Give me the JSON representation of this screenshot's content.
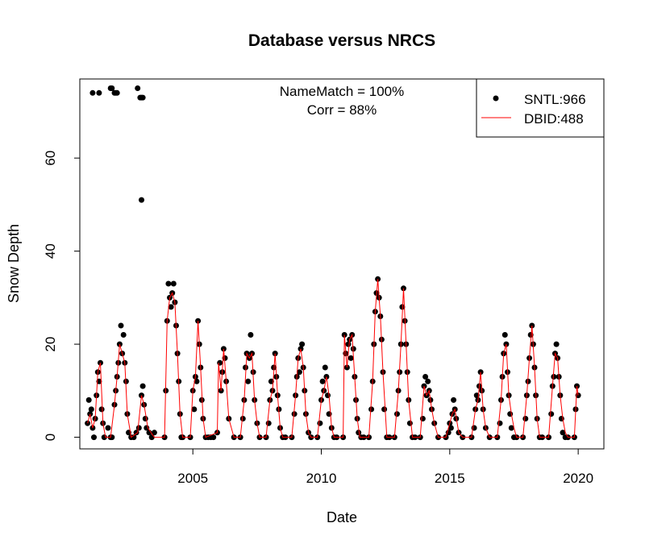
{
  "chart_data": {
    "type": "scatter",
    "title": "Database versus NRCS",
    "xlabel": "Date",
    "ylabel": "Snow Depth",
    "xlim": [
      2000.6,
      2021.0
    ],
    "ylim": [
      -2.5,
      77
    ],
    "x_ticks": [
      2005,
      2010,
      2015,
      2020
    ],
    "y_ticks": [
      0,
      20,
      40,
      60
    ],
    "grid": false,
    "legend_position": "top-right",
    "annotations": [
      "NameMatch = 100%",
      "Corr = 88%"
    ],
    "series": [
      {
        "name": "SNTL:966",
        "mark": "point",
        "color": "#000000",
        "x": [
          2000.9,
          2000.95,
          2001.0,
          2001.05,
          2001.1,
          2001.15,
          2001.2,
          2001.25,
          2001.3,
          2001.35,
          2001.4,
          2001.45,
          2001.5,
          2001.55,
          2001.7,
          2001.8,
          2001.85,
          2001.95,
          2002.0,
          2002.05,
          2002.1,
          2002.15,
          2002.2,
          2002.25,
          2002.3,
          2002.35,
          2002.4,
          2002.45,
          2002.5,
          2002.6,
          2002.7,
          2002.8,
          2002.9,
          2003.0,
          2003.05,
          2003.1,
          2003.15,
          2003.2,
          2003.3,
          2003.4,
          2003.5,
          2003.9,
          2003.95,
          2004.0,
          2004.05,
          2004.1,
          2004.15,
          2004.2,
          2004.25,
          2004.3,
          2004.35,
          2004.4,
          2004.45,
          2004.5,
          2004.55,
          2004.6,
          2004.9,
          2005.0,
          2005.05,
          2005.1,
          2005.15,
          2005.2,
          2005.25,
          2005.3,
          2005.35,
          2005.4,
          2005.5,
          2005.6,
          2005.7,
          2005.8,
          2005.95,
          2006.05,
          2006.1,
          2006.15,
          2006.2,
          2006.25,
          2006.3,
          2006.4,
          2006.6,
          2006.85,
          2006.95,
          2007.0,
          2007.05,
          2007.1,
          2007.15,
          2007.2,
          2007.25,
          2007.3,
          2007.35,
          2007.4,
          2007.5,
          2007.6,
          2007.85,
          2007.95,
          2008.0,
          2008.05,
          2008.1,
          2008.15,
          2008.2,
          2008.25,
          2008.3,
          2008.35,
          2008.4,
          2008.5,
          2008.6,
          2008.85,
          2008.95,
          2009.0,
          2009.05,
          2009.1,
          2009.15,
          2009.2,
          2009.25,
          2009.3,
          2009.35,
          2009.4,
          2009.5,
          2009.6,
          2009.85,
          2009.95,
          2010.0,
          2010.05,
          2010.1,
          2010.15,
          2010.2,
          2010.25,
          2010.3,
          2010.4,
          2010.5,
          2010.6,
          2010.85,
          2010.9,
          2010.95,
          2011.0,
          2011.05,
          2011.1,
          2011.15,
          2011.2,
          2011.25,
          2011.3,
          2011.35,
          2011.4,
          2011.45,
          2011.55,
          2011.65,
          2011.85,
          2011.95,
          2012.0,
          2012.05,
          2012.1,
          2012.15,
          2012.2,
          2012.25,
          2012.3,
          2012.35,
          2012.4,
          2012.45,
          2012.55,
          2012.65,
          2012.85,
          2012.95,
          2013.0,
          2013.05,
          2013.1,
          2013.15,
          2013.2,
          2013.25,
          2013.3,
          2013.35,
          2013.4,
          2013.45,
          2013.55,
          2013.65,
          2013.85,
          2013.95,
          2014.0,
          2014.05,
          2014.1,
          2014.15,
          2014.2,
          2014.25,
          2014.3,
          2014.4,
          2014.55,
          2014.85,
          2014.95,
          2015.0,
          2015.05,
          2015.1,
          2015.15,
          2015.2,
          2015.25,
          2015.35,
          2015.5,
          2015.85,
          2015.95,
          2016.0,
          2016.05,
          2016.1,
          2016.15,
          2016.2,
          2016.25,
          2016.3,
          2016.4,
          2016.55,
          2016.85,
          2016.95,
          2017.0,
          2017.05,
          2017.1,
          2017.15,
          2017.2,
          2017.25,
          2017.3,
          2017.35,
          2017.4,
          2017.5,
          2017.6,
          2017.85,
          2017.95,
          2018.0,
          2018.05,
          2018.1,
          2018.15,
          2018.2,
          2018.25,
          2018.3,
          2018.35,
          2018.4,
          2018.5,
          2018.6,
          2018.85,
          2018.95,
          2019.0,
          2019.05,
          2019.1,
          2019.15,
          2019.2,
          2019.25,
          2019.3,
          2019.35,
          2019.4,
          2019.5,
          2019.6,
          2019.85,
          2019.9,
          2019.95,
          2020.0,
          2001.1,
          2001.35,
          2001.8,
          2001.85,
          2001.95,
          2002.0,
          2002.05,
          2002.85,
          2002.95,
          2003.0,
          2003.05,
          2003.0
        ],
        "y": [
          3,
          8,
          5,
          6,
          2,
          0,
          4,
          9,
          14,
          12,
          16,
          6,
          3,
          0,
          2,
          0,
          0,
          7,
          10,
          13,
          16,
          20,
          24,
          18,
          22,
          16,
          12,
          5,
          1,
          0,
          0,
          1,
          2,
          9,
          11,
          7,
          4,
          2,
          1,
          0,
          1,
          0,
          10,
          25,
          33,
          30,
          28,
          31,
          33,
          29,
          24,
          18,
          12,
          5,
          0,
          0,
          0,
          10,
          6,
          13,
          12,
          25,
          20,
          15,
          8,
          4,
          0,
          0,
          0,
          0,
          1,
          16,
          10,
          14,
          19,
          17,
          12,
          4,
          0,
          0,
          4,
          8,
          15,
          18,
          12,
          17,
          22,
          18,
          14,
          8,
          3,
          0,
          0,
          3,
          8,
          12,
          10,
          15,
          18,
          13,
          9,
          6,
          2,
          0,
          0,
          0,
          5,
          9,
          13,
          17,
          14,
          19,
          20,
          15,
          10,
          5,
          1,
          0,
          0,
          3,
          8,
          12,
          10,
          15,
          13,
          9,
          5,
          2,
          0,
          0,
          0,
          22,
          18,
          15,
          20,
          21,
          17,
          22,
          19,
          13,
          8,
          4,
          1,
          0,
          0,
          0,
          6,
          12,
          20,
          27,
          31,
          34,
          30,
          26,
          21,
          14,
          6,
          0,
          0,
          0,
          5,
          10,
          14,
          20,
          28,
          32,
          25,
          20,
          14,
          8,
          3,
          0,
          0,
          0,
          4,
          11,
          13,
          9,
          12,
          10,
          8,
          6,
          3,
          0,
          0,
          1,
          3,
          2,
          5,
          8,
          6,
          4,
          1,
          0,
          0,
          2,
          6,
          9,
          8,
          11,
          14,
          10,
          6,
          2,
          0,
          0,
          3,
          8,
          13,
          18,
          22,
          20,
          14,
          9,
          5,
          2,
          0,
          0,
          0,
          4,
          9,
          12,
          17,
          22,
          24,
          20,
          15,
          9,
          4,
          0,
          0,
          0,
          5,
          11,
          13,
          18,
          20,
          17,
          13,
          9,
          4,
          1,
          0,
          0,
          0,
          6,
          11,
          9,
          74,
          74,
          75,
          75,
          74,
          74,
          74,
          75,
          73,
          73,
          73,
          51
        ]
      },
      {
        "name": "DBID:488",
        "mark": "line",
        "color": "#ff0000",
        "x": [
          2000.9,
          2001.0,
          2001.1,
          2001.2,
          2001.3,
          2001.4,
          2001.5,
          2001.6,
          2001.8,
          2001.95,
          2002.05,
          2002.15,
          2002.25,
          2002.35,
          2002.45,
          2002.6,
          2002.85,
          2003.0,
          2003.1,
          2003.25,
          2003.5,
          2003.85,
          2003.9,
          2004.0,
          2004.1,
          2004.2,
          2004.3,
          2004.4,
          2004.5,
          2004.6,
          2004.9,
          2005.0,
          2005.1,
          2005.2,
          2005.3,
          2005.4,
          2005.5,
          2005.95,
          2006.0,
          2006.1,
          2006.2,
          2006.3,
          2006.4,
          2006.6,
          2006.85,
          2007.0,
          2007.1,
          2007.2,
          2007.3,
          2007.4,
          2007.5,
          2007.6,
          2007.85,
          2008.0,
          2008.1,
          2008.2,
          2008.3,
          2008.4,
          2008.5,
          2008.6,
          2008.85,
          2009.0,
          2009.1,
          2009.2,
          2009.3,
          2009.4,
          2009.5,
          2009.6,
          2009.85,
          2010.0,
          2010.1,
          2010.2,
          2010.3,
          2010.4,
          2010.5,
          2010.6,
          2010.85,
          2010.9,
          2011.0,
          2011.1,
          2011.2,
          2011.3,
          2011.4,
          2011.5,
          2011.65,
          2011.85,
          2012.0,
          2012.1,
          2012.2,
          2012.3,
          2012.4,
          2012.55,
          2012.65,
          2012.85,
          2013.0,
          2013.1,
          2013.2,
          2013.3,
          2013.4,
          2013.55,
          2013.65,
          2013.85,
          2014.0,
          2014.1,
          2014.2,
          2014.3,
          2014.4,
          2014.55,
          2014.85,
          2015.0,
          2015.1,
          2015.2,
          2015.35,
          2015.5,
          2015.85,
          2016.0,
          2016.1,
          2016.2,
          2016.3,
          2016.4,
          2016.55,
          2016.85,
          2017.0,
          2017.1,
          2017.2,
          2017.3,
          2017.4,
          2017.5,
          2017.6,
          2017.85,
          2018.0,
          2018.1,
          2018.2,
          2018.3,
          2018.4,
          2018.5,
          2018.6,
          2018.85,
          2019.0,
          2019.1,
          2019.2,
          2019.3,
          2019.4,
          2019.5,
          2019.6,
          2019.85,
          2019.95,
          2020.0
        ],
        "y": [
          3,
          5,
          2,
          4,
          14,
          16,
          3,
          0,
          0,
          7,
          13,
          20,
          18,
          16,
          5,
          0,
          1,
          9,
          7,
          2,
          0,
          0,
          0,
          25,
          30,
          31,
          29,
          18,
          5,
          0,
          0,
          10,
          13,
          25,
          15,
          4,
          0,
          1,
          16,
          10,
          19,
          12,
          4,
          0,
          0,
          8,
          18,
          17,
          18,
          8,
          3,
          0,
          0,
          8,
          10,
          18,
          9,
          2,
          0,
          0,
          0,
          9,
          17,
          19,
          15,
          5,
          1,
          0,
          0,
          8,
          10,
          13,
          9,
          2,
          0,
          0,
          0,
          22,
          15,
          21,
          22,
          13,
          4,
          0,
          0,
          0,
          12,
          27,
          34,
          26,
          14,
          0,
          0,
          0,
          10,
          20,
          32,
          20,
          8,
          0,
          0,
          0,
          11,
          9,
          10,
          6,
          3,
          0,
          0,
          3,
          5,
          6,
          1,
          0,
          0,
          6,
          8,
          14,
          6,
          2,
          0,
          0,
          8,
          18,
          20,
          9,
          5,
          2,
          0,
          0,
          9,
          17,
          24,
          15,
          4,
          0,
          0,
          0,
          11,
          18,
          17,
          9,
          4,
          1,
          0,
          0,
          11,
          9
        ]
      }
    ]
  }
}
